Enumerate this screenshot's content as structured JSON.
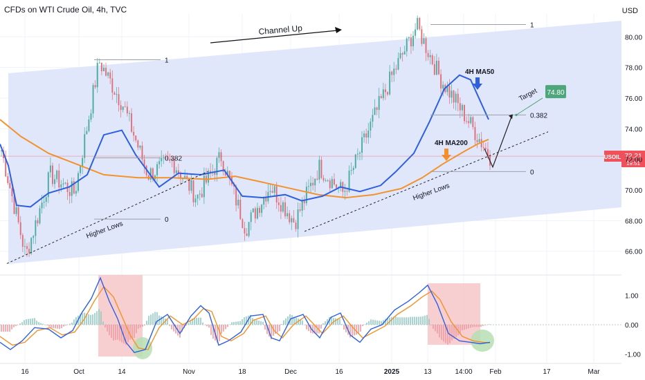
{
  "header": {
    "title": "CFDs on WTI Crude Oil, 4h, TVC",
    "currency": "USD"
  },
  "colors": {
    "channel_fill": "#dfe6fb",
    "ma50": "#2d5fe0",
    "ma200": "#f2922a",
    "candle_up": "#3fa89a",
    "candle_down": "#e06670",
    "price_label_bg": "#f0505a",
    "target_label_bg": "#4ea67a",
    "highlight_red": "#f6c3c6",
    "highlight_green": "#b6dfb3",
    "macd_line": "#2d5fe0",
    "signal_line": "#f2922a"
  },
  "chart_data": [
    {
      "type": "candlestick",
      "title": "CFDs on WTI Crude Oil, 4h, TVC",
      "ylabel": "USD",
      "ylim": [
        64.5,
        81.5
      ],
      "y_ticks": [
        "66.00",
        "68.00",
        "70.00",
        "72.00",
        "74.00",
        "76.00",
        "78.00",
        "80.00"
      ],
      "x_ticks": [
        "16",
        "Oct",
        "14",
        "Nov",
        "18",
        "Dec",
        "16",
        "2025",
        "13",
        "14:00",
        "Feb",
        "17",
        "Mar"
      ],
      "price_anchor_points": [
        {
          "t": "start",
          "price": 72.6
        },
        {
          "t": "Sep 10",
          "price": 65.7
        },
        {
          "t": "Sep 25",
          "price": 71.0
        },
        {
          "t": "Oct 1",
          "price": 69.8
        },
        {
          "t": "Oct 8",
          "price": 78.4
        },
        {
          "t": "Oct 11",
          "price": 75.5
        },
        {
          "t": "Oct 15",
          "price": 71.0
        },
        {
          "t": "Oct 25",
          "price": 71.9
        },
        {
          "t": "Nov 5",
          "price": 69.5
        },
        {
          "t": "Nov 12",
          "price": 72.2
        },
        {
          "t": "Nov 18",
          "price": 67.5
        },
        {
          "t": "Nov 28",
          "price": 70.3
        },
        {
          "t": "Dec 10",
          "price": 67.9
        },
        {
          "t": "Dec 16",
          "price": 71.5
        },
        {
          "t": "Dec 24",
          "price": 69.8
        },
        {
          "t": "Jan 3",
          "price": 73.8
        },
        {
          "t": "Jan 10",
          "price": 77.5
        },
        {
          "t": "Jan 15",
          "price": 80.7
        },
        {
          "t": "Jan 20",
          "price": 77.2
        },
        {
          "t": "Jan 24",
          "price": 74.8
        },
        {
          "t": "Jan 28",
          "price": 72.21
        }
      ],
      "series": [
        {
          "name": "4H MA50",
          "points": [
            [
              0,
              73.0
            ],
            [
              12,
              71.6
            ],
            [
              24,
              69.0
            ],
            [
              44,
              68.9
            ],
            [
              70,
              69.8
            ],
            [
              100,
              70.2
            ],
            [
              126,
              71.0
            ],
            [
              150,
              73.6
            ],
            [
              176,
              73.9
            ],
            [
              196,
              72.3
            ],
            [
              230,
              70.2
            ],
            [
              258,
              71.1
            ],
            [
              290,
              71.0
            ],
            [
              324,
              71.3
            ],
            [
              350,
              69.6
            ],
            [
              380,
              69.5
            ],
            [
              412,
              69.7
            ],
            [
              436,
              69.3
            ],
            [
              466,
              69.6
            ],
            [
              492,
              70.2
            ],
            [
              520,
              69.9
            ],
            [
              550,
              70.3
            ],
            [
              572,
              71.2
            ],
            [
              598,
              72.4
            ],
            [
              620,
              74.4
            ],
            [
              642,
              76.6
            ],
            [
              664,
              77.5
            ],
            [
              680,
              77.2
            ],
            [
              696,
              75.6
            ],
            [
              706,
              74.6
            ]
          ]
        },
        {
          "name": "4H MA200",
          "points": [
            [
              0,
              74.6
            ],
            [
              30,
              73.5
            ],
            [
              70,
              72.4
            ],
            [
              110,
              71.7
            ],
            [
              150,
              71.0
            ],
            [
              200,
              70.8
            ],
            [
              250,
              70.8
            ],
            [
              300,
              70.7
            ],
            [
              340,
              70.9
            ],
            [
              380,
              70.5
            ],
            [
              420,
              70.1
            ],
            [
              460,
              69.7
            ],
            [
              500,
              69.5
            ],
            [
              540,
              69.7
            ],
            [
              580,
              70.1
            ],
            [
              610,
              70.8
            ],
            [
              640,
              71.7
            ],
            [
              670,
              72.5
            ],
            [
              690,
              73.0
            ],
            [
              706,
              73.3
            ]
          ]
        }
      ],
      "fib_levels": [
        {
          "label": "1",
          "price": 78.5
        },
        {
          "label": "0.382",
          "price": 72.1
        },
        {
          "label": "0",
          "price": 68.1
        },
        {
          "label": "1",
          "price": 80.8
        },
        {
          "label": "0.382",
          "price": 74.9
        },
        {
          "label": "0",
          "price": 71.2
        }
      ],
      "current_price": {
        "symbol": "USOIL",
        "value": "72.21",
        "countdown": "19:51"
      },
      "target": {
        "label": "Target",
        "value": "74.80"
      }
    },
    {
      "type": "line",
      "title": "",
      "ylim": [
        -1.3,
        1.7
      ],
      "y_ticks": [
        "1.00",
        "0.00",
        "-1.00"
      ],
      "series": [
        {
          "name": "MACD",
          "points": [
            [
              0,
              -0.6
            ],
            [
              15,
              -0.85
            ],
            [
              32,
              -0.55
            ],
            [
              50,
              -0.1
            ],
            [
              70,
              -0.15
            ],
            [
              88,
              -0.45
            ],
            [
              105,
              -0.2
            ],
            [
              118,
              0.4
            ],
            [
              132,
              0.9
            ],
            [
              145,
              1.6
            ],
            [
              158,
              0.8
            ],
            [
              170,
              0.2
            ],
            [
              182,
              -0.6
            ],
            [
              194,
              -0.95
            ],
            [
              210,
              -0.85
            ],
            [
              226,
              0.1
            ],
            [
              242,
              0.35
            ],
            [
              260,
              -0.3
            ],
            [
              276,
              0.3
            ],
            [
              290,
              0.65
            ],
            [
              302,
              0.4
            ],
            [
              316,
              -0.7
            ],
            [
              330,
              -0.55
            ],
            [
              348,
              -0.25
            ],
            [
              362,
              0.3
            ],
            [
              380,
              0.35
            ],
            [
              392,
              -0.45
            ],
            [
              404,
              -0.55
            ],
            [
              420,
              0.2
            ],
            [
              438,
              0.35
            ],
            [
              450,
              -0.15
            ],
            [
              462,
              -0.45
            ],
            [
              478,
              0.25
            ],
            [
              492,
              0.4
            ],
            [
              506,
              -0.35
            ],
            [
              520,
              -0.6
            ],
            [
              536,
              -0.15
            ],
            [
              552,
              0.0
            ],
            [
              570,
              0.5
            ],
            [
              590,
              0.8
            ],
            [
              606,
              1.1
            ],
            [
              618,
              1.35
            ],
            [
              632,
              0.7
            ],
            [
              648,
              -0.3
            ],
            [
              664,
              -0.55
            ],
            [
              680,
              -0.6
            ],
            [
              694,
              -0.65
            ],
            [
              708,
              -0.6
            ]
          ]
        },
        {
          "name": "Signal",
          "points": [
            [
              0,
              -0.4
            ],
            [
              18,
              -0.7
            ],
            [
              36,
              -0.6
            ],
            [
              54,
              -0.2
            ],
            [
              72,
              -0.1
            ],
            [
              90,
              -0.35
            ],
            [
              108,
              -0.25
            ],
            [
              122,
              0.2
            ],
            [
              136,
              0.8
            ],
            [
              150,
              1.3
            ],
            [
              164,
              0.95
            ],
            [
              176,
              0.3
            ],
            [
              188,
              -0.35
            ],
            [
              200,
              -0.8
            ],
            [
              214,
              -0.85
            ],
            [
              230,
              -0.1
            ],
            [
              246,
              0.3
            ],
            [
              264,
              0.0
            ],
            [
              280,
              0.2
            ],
            [
              294,
              0.55
            ],
            [
              306,
              0.45
            ],
            [
              320,
              -0.4
            ],
            [
              334,
              -0.55
            ],
            [
              352,
              -0.3
            ],
            [
              366,
              0.15
            ],
            [
              384,
              0.3
            ],
            [
              396,
              -0.2
            ],
            [
              408,
              -0.45
            ],
            [
              424,
              0.0
            ],
            [
              442,
              0.3
            ],
            [
              454,
              0.0
            ],
            [
              466,
              -0.3
            ],
            [
              482,
              0.1
            ],
            [
              496,
              0.3
            ],
            [
              510,
              -0.1
            ],
            [
              524,
              -0.45
            ],
            [
              540,
              -0.25
            ],
            [
              556,
              -0.05
            ],
            [
              574,
              0.35
            ],
            [
              594,
              0.65
            ],
            [
              610,
              0.95
            ],
            [
              624,
              1.15
            ],
            [
              636,
              0.85
            ],
            [
              652,
              0.1
            ],
            [
              668,
              -0.4
            ],
            [
              684,
              -0.55
            ],
            [
              698,
              -0.6
            ],
            [
              708,
              -0.62
            ]
          ]
        }
      ]
    }
  ],
  "annotations": {
    "channel_up": "Channel Up",
    "higher_lows_1": "Higher Lows",
    "higher_lows_2": "Higher Lows",
    "ma50_label": "4H MA50",
    "ma200_label": "4H MA200"
  }
}
